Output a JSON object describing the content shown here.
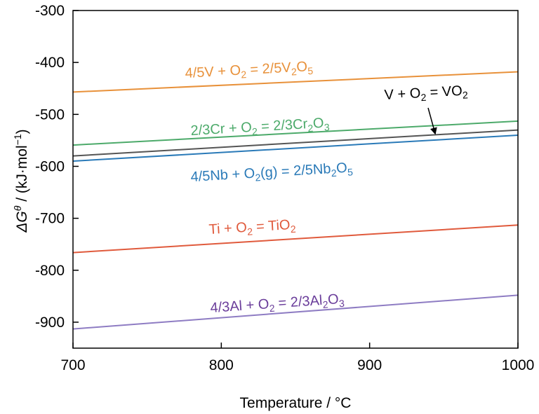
{
  "chart_data": {
    "type": "line",
    "title": "",
    "xlabel": "Temperature / °C",
    "ylabel": {
      "prefix": "ΔG",
      "sup": "θ",
      "mid": " / (kJ·mol",
      "sup2": "−1",
      "suffix": ")"
    },
    "xlim": [
      700,
      1000
    ],
    "ylim": [
      -950,
      -300
    ],
    "xticks": [
      700,
      800,
      900,
      1000
    ],
    "yticks": [
      -300,
      -400,
      -500,
      -600,
      -700,
      -800,
      -900
    ],
    "xtick_labels": [
      "700",
      "800",
      "900",
      "1000"
    ],
    "ytick_labels": [
      "-300",
      "-400",
      "-500",
      "-600",
      "-700",
      "-800",
      "-900"
    ],
    "grid": false,
    "legend": "none",
    "series": [
      {
        "key": "v2o5",
        "color": "#e8913a",
        "x": [
          700,
          1000
        ],
        "y": [
          -457,
          -418
        ],
        "label_parts": [
          [
            "t",
            "4/5V + O"
          ],
          [
            "s",
            "2"
          ],
          [
            "t",
            " = 2/5V"
          ],
          [
            "s",
            "2"
          ],
          [
            "t",
            "O"
          ],
          [
            "s",
            "5"
          ]
        ]
      },
      {
        "key": "vo2",
        "color": "#555555",
        "x": [
          700,
          1000
        ],
        "y": [
          -580,
          -530
        ],
        "label_parts": [
          [
            "t",
            "V + O"
          ],
          [
            "s",
            "2"
          ],
          [
            "t",
            " = VO"
          ],
          [
            "s",
            "2"
          ]
        ]
      },
      {
        "key": "cr2o3",
        "color": "#4caa6a",
        "x": [
          700,
          1000
        ],
        "y": [
          -559,
          -513
        ],
        "label_parts": [
          [
            "t",
            "2/3Cr + O"
          ],
          [
            "s",
            "2"
          ],
          [
            "t",
            " = 2/3Cr"
          ],
          [
            "s",
            "2"
          ],
          [
            "t",
            "O"
          ],
          [
            "s",
            "3"
          ]
        ]
      },
      {
        "key": "nb2o5",
        "color": "#2a7ab8",
        "x": [
          700,
          1000
        ],
        "y": [
          -590,
          -540
        ],
        "label_parts": [
          [
            "t",
            "4/5Nb + O"
          ],
          [
            "s",
            "2"
          ],
          [
            "t",
            "(g) = 2/5Nb"
          ],
          [
            "s",
            "2"
          ],
          [
            "t",
            "O"
          ],
          [
            "s",
            "5"
          ]
        ]
      },
      {
        "key": "tio2",
        "color": "#e05a3c",
        "x": [
          700,
          1000
        ],
        "y": [
          -766,
          -713
        ],
        "label_parts": [
          [
            "t",
            "Ti + O"
          ],
          [
            "s",
            "2"
          ],
          [
            "t",
            " = TiO"
          ],
          [
            "s",
            "2"
          ]
        ]
      },
      {
        "key": "al2o3",
        "color": "#8e7cc3",
        "x": [
          700,
          1000
        ],
        "y": [
          -913,
          -848
        ],
        "label_parts": [
          [
            "t",
            "4/3Al + O"
          ],
          [
            "s",
            "2"
          ],
          [
            "t",
            " = 2/3Al"
          ],
          [
            "s",
            "2"
          ],
          [
            "t",
            "O"
          ],
          [
            "s",
            "3"
          ]
        ]
      }
    ]
  }
}
